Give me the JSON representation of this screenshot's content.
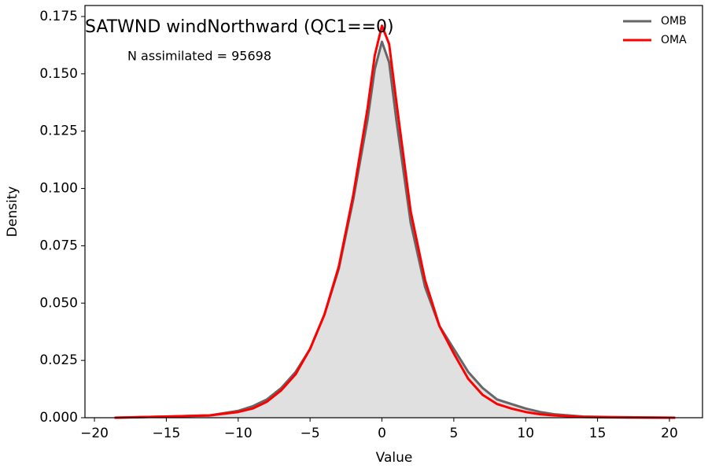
{
  "chart_data": {
    "type": "density",
    "title": "SATWND windNorthward (QC1==0)",
    "annotation": "N assimilated = 95698",
    "xlabel": "Value",
    "ylabel": "Density",
    "x": [
      -18.6,
      -15,
      -12,
      -10,
      -9,
      -8,
      -7,
      -6,
      -5,
      -4,
      -3,
      -2,
      -1,
      -0.5,
      0,
      0.5,
      1,
      2,
      3,
      4,
      5,
      6,
      7,
      8,
      9,
      10,
      11,
      12,
      14,
      17,
      20.4
    ],
    "series": [
      {
        "name": "OMB",
        "color": "#666666",
        "fill": "#e0e0e0",
        "values": [
          0,
          0.0005,
          0.001,
          0.003,
          0.005,
          0.008,
          0.013,
          0.02,
          0.03,
          0.045,
          0.065,
          0.095,
          0.13,
          0.152,
          0.164,
          0.155,
          0.13,
          0.085,
          0.057,
          0.04,
          0.03,
          0.02,
          0.013,
          0.008,
          0.006,
          0.004,
          0.0025,
          0.0015,
          0.0005,
          0.0002,
          0
        ]
      },
      {
        "name": "OMA",
        "color": "#ff0000",
        "values": [
          0,
          0.0005,
          0.001,
          0.0025,
          0.004,
          0.007,
          0.012,
          0.019,
          0.03,
          0.045,
          0.066,
          0.097,
          0.135,
          0.158,
          0.171,
          0.163,
          0.138,
          0.09,
          0.06,
          0.04,
          0.028,
          0.017,
          0.01,
          0.006,
          0.004,
          0.0025,
          0.0015,
          0.001,
          0.0003,
          0.0001,
          0
        ]
      }
    ],
    "xlim": [
      -20.66,
      22.3
    ],
    "ylim": [
      0,
      0.1798
    ],
    "xticks": [
      {
        "value": -20,
        "label": "−20"
      },
      {
        "value": -15,
        "label": "−15"
      },
      {
        "value": -10,
        "label": "−10"
      },
      {
        "value": -5,
        "label": "−5"
      },
      0,
      5,
      10,
      15,
      20
    ],
    "yticks": [
      {
        "value": 0,
        "label": "0.000"
      },
      {
        "value": 0.025,
        "label": "0.025"
      },
      {
        "value": 0.05,
        "label": "0.050"
      },
      {
        "value": 0.075,
        "label": "0.075"
      },
      {
        "value": 0.1,
        "label": "0.100"
      },
      {
        "value": 0.125,
        "label": "0.125"
      },
      {
        "value": 0.15,
        "label": "0.150"
      },
      {
        "value": 0.175,
        "label": "0.175"
      }
    ],
    "legend": "upper right"
  }
}
